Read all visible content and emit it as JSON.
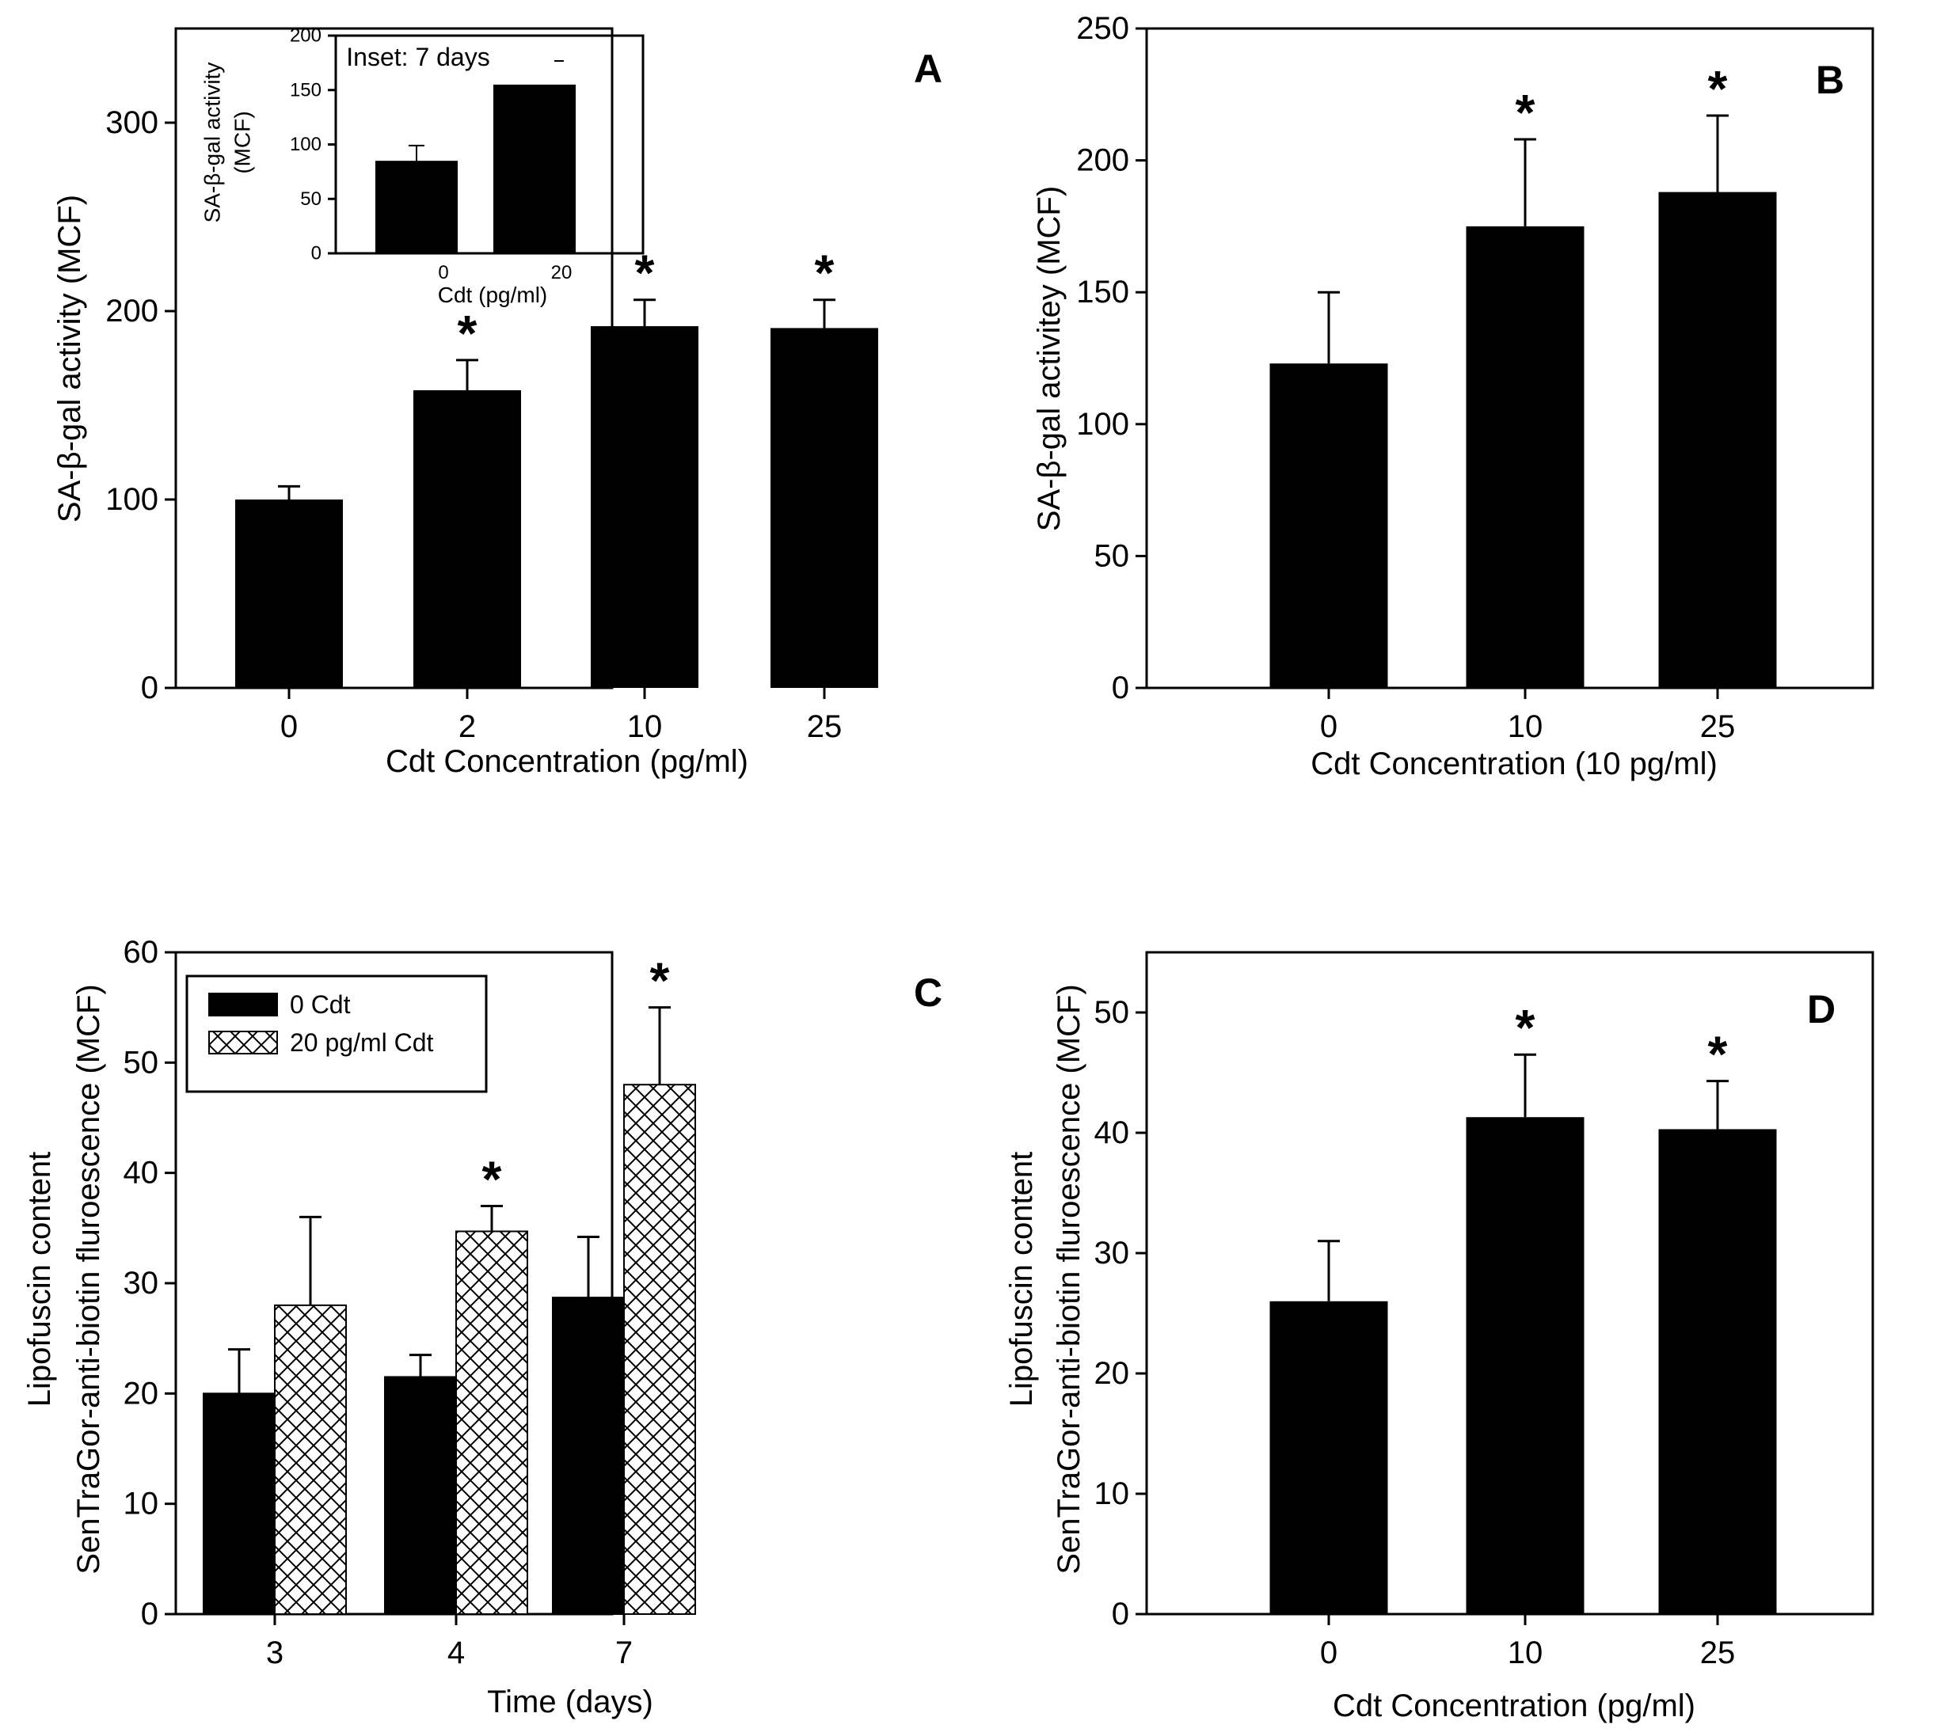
{
  "chart_data": [
    {
      "id": "A",
      "type": "bar",
      "panel_label": "A",
      "xlabel": "Cdt Concentration (pg/ml)",
      "ylabel": "SA-β-gal activity (MCF)",
      "categories": [
        "0",
        "2",
        "10",
        "25"
      ],
      "values": [
        100,
        158,
        192,
        191
      ],
      "errors": [
        7,
        16,
        14,
        15
      ],
      "significant": [
        false,
        true,
        true,
        true
      ],
      "significance_mark": "*",
      "ylim": [
        0,
        350
      ],
      "yticks": [
        0,
        100,
        200,
        300
      ],
      "bar_color": "#000000",
      "inset": {
        "type": "bar",
        "title": "Inset: 7 days",
        "xlabel": "Cdt (pg/ml)",
        "ylabel": "SA-β-gal activity (MCF)",
        "ylabel_line1": "SA-β-gal activity",
        "ylabel_line2": "(MCF)",
        "categories": [
          "0",
          "20"
        ],
        "values": [
          85,
          155
        ],
        "errors": [
          14,
          0
        ],
        "ylim": [
          0,
          200
        ],
        "yticks": [
          0,
          50,
          100,
          150,
          200
        ]
      }
    },
    {
      "id": "B",
      "type": "bar",
      "panel_label": "B",
      "xlabel": "Cdt Concentration (10 pg/ml)",
      "ylabel": "SA-β-gal activitey (MCF)",
      "categories": [
        "0",
        "10",
        "25"
      ],
      "values": [
        123,
        175,
        188
      ],
      "errors": [
        27,
        33,
        29
      ],
      "significant": [
        false,
        true,
        true
      ],
      "significance_mark": "*",
      "ylim": [
        0,
        250
      ],
      "yticks": [
        0,
        50,
        100,
        150,
        200,
        250
      ],
      "bar_color": "#000000"
    },
    {
      "id": "C",
      "type": "bar",
      "panel_label": "C",
      "xlabel": "Time (days)",
      "ylabel": "Lipofuscin content SenTraGor-anti-biotin fluroescence (MCF)",
      "ylabel_line1": "Lipofuscin content",
      "ylabel_line2": "SenTraGor-anti-biotin fluroescence (MCF)",
      "categories": [
        "3",
        "4",
        "7"
      ],
      "series": [
        {
          "name": "0 Cdt",
          "values": [
            20,
            21.5,
            28.7
          ],
          "errors": [
            4,
            2,
            5.5
          ],
          "fill": "solid",
          "significant": [
            false,
            false,
            false
          ]
        },
        {
          "name": "20 pg/ml Cdt",
          "values": [
            28,
            34.7,
            48
          ],
          "errors": [
            8,
            2.3,
            7
          ],
          "fill": "crosshatch",
          "significant": [
            false,
            true,
            true
          ]
        }
      ],
      "significance_mark": "*",
      "legend_position": "top-left",
      "ylim": [
        0,
        60
      ],
      "yticks": [
        0,
        10,
        20,
        30,
        40,
        50,
        60
      ],
      "bar_color": "#000000"
    },
    {
      "id": "D",
      "type": "bar",
      "panel_label": "D",
      "xlabel": "Cdt Concentration (pg/ml)",
      "ylabel": "Lipofuscin content SenTraGor-anti-biotin fluroescence (MCF)",
      "ylabel_line1": "Lipofuscin content",
      "ylabel_line2": "SenTraGor-anti-biotin fluroescence (MCF)",
      "categories": [
        "0",
        "10",
        "25"
      ],
      "values": [
        26,
        41.3,
        40.3
      ],
      "errors": [
        5,
        5.2,
        4
      ],
      "significant": [
        false,
        true,
        true
      ],
      "significance_mark": "*",
      "ylim": [
        0,
        55
      ],
      "yticks": [
        0,
        10,
        20,
        30,
        40,
        50
      ],
      "bar_color": "#000000"
    }
  ]
}
